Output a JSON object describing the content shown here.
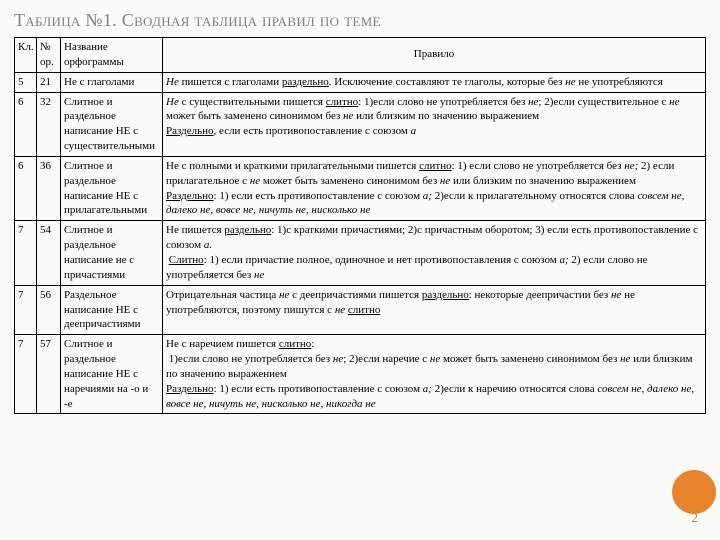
{
  "title": "Таблица №1. Сводная таблица правил по теме",
  "headers": {
    "c1": "Кл.",
    "c2": "№ ор.",
    "c3": "Название орфограммы",
    "c4": "Правило"
  },
  "rows": [
    {
      "kl": "5",
      "num": "21",
      "name": "Не с глаголами",
      "rule": "<span class='i'>Не</span> пишется с глаголами <span class='u'>раздельно</span>. Исключение составляют те глаголы, которые без <span class='i'>не</span> не употребляются"
    },
    {
      "kl": "6",
      "num": "32",
      "name": "Слитное и раздельное написание НЕ с существительными",
      "rule": "<span class='i'>Не</span> с существительными пишется <span class='u'>слитно</span>: 1)если слово не употребляется без <span class='i'>не</span>; 2)если существительное с <span class='i'>не</span> может быть заменено синонимом без <span class='i'>не</span> или близким по значению выражением<br><span class='u'>Раздельно</span>, если есть противопоставление с союзом <span class='i'>а</span>"
    },
    {
      "kl": "6",
      "num": "36",
      "name": "Слитное и раздельное написание НЕ с прилагательными",
      "rule": "Не с полными и краткими прилагательными пишется <span class='u'>слитно</span>: 1) если слово не употребляется без <span class='i'>не;</span> 2) если прилагательное с <span class='i'>не</span> может быть заменено синонимом без <span class='i'>не</span> или близким по значению выражением<br><span class='u'>Раздельно</span>: 1) если есть противопоставление с союзом <span class='i'>а;</span> 2)если к прилагательному относятся слова <span class='i'>совсем не, далеко не, вовсе не, ничуть не, нисколько не</span>"
    },
    {
      "kl": "7",
      "num": "54",
      "name": "Слитное и раздельное написание не с причастиями",
      "rule": "Не пишется <span class='u'>раздельно</span>: 1)с краткими причастиями; 2)с причастным оборотом; 3) если есть противопоставление с союзом <span class='i'>а.</span><br>&nbsp;<span class='u'>Слитно</span>: 1) если причастие полное, одиночное и нет противопоставления с союзом <span class='i'>а;</span> 2) если слово не употребляется без <span class='i'>не</span>"
    },
    {
      "kl": "7",
      "num": "56",
      "name": "Раздельное написание НЕ с деепричастиями",
      "rule": "Отрицательная частица <span class='i'>не</span> с деепричастиями пишется <span class='u'>раздельно</span>: некоторые деепричастии без <span class='i'>не</span> не употребляются, поэтому пишутся с <span class='i'>не </span><span class='u'>слитно</span>"
    },
    {
      "kl": "7",
      "num": "57",
      "name": "Слитное и раздельное написание НЕ с наречиями на -о и -е",
      "rule": "Не с наречием пишется <span class='u'>слитно</span>:<br>&nbsp;1)если слово не употребляется без <span class='i'>не</span>; 2)если наречие с <span class='i'>не</span> может быть заменено синонимом без <span class='i'>не</span> или близким по значению выражением<br><span class='u'>Раздельно</span>: 1) если есть противопоставление с союзом <span class='i'>а;</span> 2)если к наречию относятся слова <span class='i'>совсем не, далеко не, вовсе не, ничуть не, нисколько не, никогда не</span>"
    }
  ],
  "page": "2",
  "colors": {
    "title": "#808080",
    "circle": "#e7842b",
    "pagenum": "#a88c5a",
    "bg": "#fafaf7",
    "border": "#000000"
  }
}
